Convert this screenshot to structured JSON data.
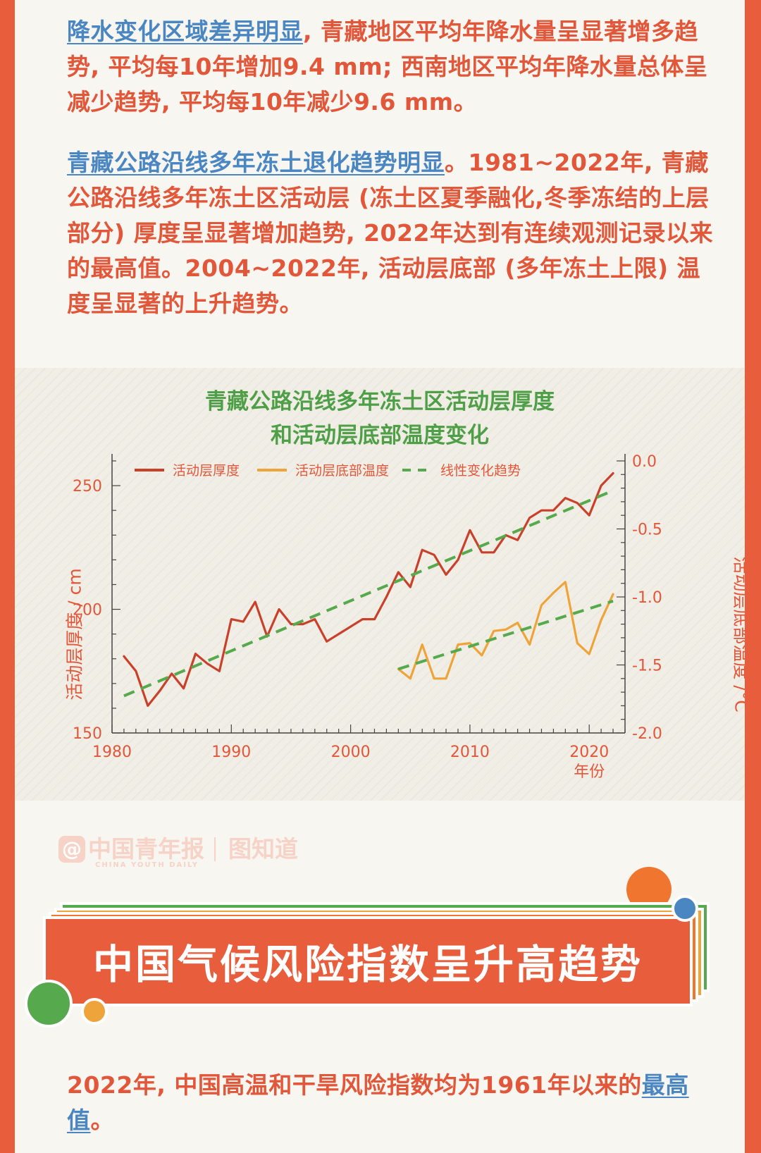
{
  "paragraph1": {
    "highlight": "降水变化区域差异明显",
    "text": ", 青藏地区平均年降水量呈显著增多趋势, 平均每10年增加9.4 mm; 西南地区平均年降水量总体呈减少趋势, 平均每10年减少9.6 mm。"
  },
  "paragraph2": {
    "highlight": "青藏公路沿线多年冻土退化趋势明显",
    "text": "。1981~2022年, 青藏公路沿线多年冻土区活动层 (冻土区夏季融化,冬季冻结的上层部分) 厚度呈显著增加趋势, 2022年达到有连续观测记录以来的最高值。2004~2022年, 活动层底部 (多年冻土上限) 温度呈显著的上升趋势。"
  },
  "chart_data": {
    "type": "line",
    "title_line1": "青藏公路沿线多年冻土区活动层厚度",
    "title_line2": "和活动层底部温度变化",
    "xlabel": "年份",
    "ylabel_left": "活动层厚度 / cm",
    "ylabel_right": "活动层底部温度 /°C",
    "xlim": [
      1980,
      2023
    ],
    "ylim_left": [
      150,
      260
    ],
    "ylim_right": [
      -2.0,
      0.0
    ],
    "x_ticks": [
      1980,
      1990,
      2000,
      2010,
      2020
    ],
    "y_ticks_left": [
      150,
      200,
      250
    ],
    "y_ticks_right": [
      "0.0",
      "-0.5",
      "-1.0",
      "-1.5",
      "-2.0"
    ],
    "y_ticks_right_values": [
      0.0,
      -0.5,
      -1.0,
      -1.5,
      -2.0
    ],
    "legend_position": "top",
    "series": [
      {
        "name": "活动层厚度",
        "axis": "left",
        "color": "#c9402b",
        "style": "solid",
        "x": [
          1981,
          1982,
          1983,
          1984,
          1985,
          1986,
          1987,
          1988,
          1989,
          1990,
          1991,
          1992,
          1993,
          1994,
          1995,
          1996,
          1997,
          1998,
          1999,
          2000,
          2001,
          2002,
          2003,
          2004,
          2005,
          2006,
          2007,
          2008,
          2009,
          2010,
          2011,
          2012,
          2013,
          2014,
          2015,
          2016,
          2017,
          2018,
          2019,
          2020,
          2021,
          2022
        ],
        "values": [
          181,
          175,
          161,
          167,
          174,
          168,
          182,
          178,
          175,
          196,
          195,
          203,
          189,
          200,
          194,
          194,
          196,
          187,
          190,
          193,
          196,
          196,
          205,
          215,
          209,
          224,
          222,
          214,
          220,
          232,
          223,
          223,
          230,
          228,
          237,
          240,
          240,
          245,
          243,
          238,
          250,
          255
        ]
      },
      {
        "name": "活动层底部温度",
        "axis": "right",
        "color": "#eea43a",
        "style": "solid",
        "x": [
          2004,
          2005,
          2006,
          2007,
          2008,
          2009,
          2010,
          2011,
          2012,
          2013,
          2014,
          2015,
          2016,
          2017,
          2018,
          2019,
          2020,
          2021,
          2022
        ],
        "values": [
          -1.53,
          -1.6,
          -1.35,
          -1.6,
          -1.6,
          -1.35,
          -1.34,
          -1.43,
          -1.25,
          -1.24,
          -1.19,
          -1.35,
          -1.06,
          -0.97,
          -0.89,
          -1.34,
          -1.42,
          -1.17,
          -0.98
        ]
      },
      {
        "name": "线性变化趋势",
        "axis": "left",
        "color": "#56a94c",
        "style": "dashed",
        "x": [
          1981,
          2022
        ],
        "values": [
          165,
          248
        ]
      },
      {
        "name": "线性变化趋势",
        "axis": "right",
        "color": "#56a94c",
        "style": "dashed",
        "legend": false,
        "x": [
          2004,
          2022
        ],
        "values": [
          -1.53,
          -1.03
        ]
      }
    ]
  },
  "logo": {
    "name": "中国青年报",
    "sub": "CHINA YOUTH DAILY",
    "brand": "图知道"
  },
  "banner": {
    "title": "中国气候风险指数呈升高趋势"
  },
  "paragraph3": {
    "text": "2022年, 中国高温和干旱风险指数均为1961年以来的",
    "highlight": "最高值",
    "tail": "。"
  }
}
